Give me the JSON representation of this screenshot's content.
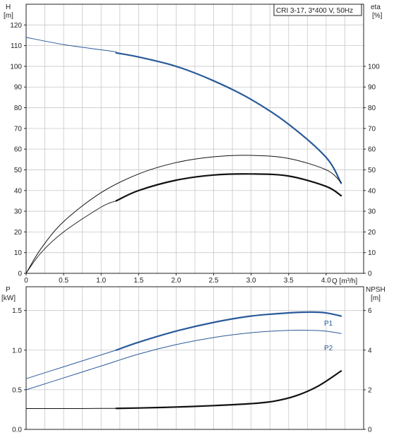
{
  "title": "CRI 3-17, 3*400 V, 50Hz",
  "colors": {
    "blue": "#2a5a9a",
    "black": "#111111",
    "grid": "#c8c8c8",
    "axis": "#222222"
  },
  "chart_data": [
    {
      "type": "line",
      "title": "CRI 3-17, 3*400 V, 50Hz",
      "xlabel": "Q [m³/h]",
      "ylabel_left": "H\n[m]",
      "ylabel_right": "eta\n[%]",
      "xlim": [
        0,
        4.5
      ],
      "ylim_left": [
        0,
        130
      ],
      "ylim_right": [
        0,
        130
      ],
      "x_ticks": [
        "0",
        "0.5",
        "1.0",
        "1.5",
        "2.0",
        "2.5",
        "3.0",
        "3.5",
        "4.0"
      ],
      "y_ticks_left": [
        "0",
        "10",
        "20",
        "30",
        "40",
        "50",
        "60",
        "70",
        "80",
        "90",
        "100",
        "110",
        "120"
      ],
      "y_ticks_right": [
        "0",
        "10",
        "20",
        "30",
        "40",
        "50",
        "60",
        "70",
        "80",
        "90",
        "100"
      ],
      "grid": true,
      "series": [
        {
          "key": "H_thin",
          "axis": "left",
          "color": "#2a5a9a",
          "width": 1,
          "x": [
            0,
            0.5,
            1.0,
            1.2
          ],
          "y": [
            114,
            110.5,
            108,
            107
          ]
        },
        {
          "key": "H_thick",
          "axis": "left",
          "color": "#2a5a9a",
          "width": 2.2,
          "x": [
            1.2,
            1.5,
            2.0,
            2.5,
            3.0,
            3.5,
            4.0,
            4.2
          ],
          "y": [
            106.5,
            104.5,
            100,
            93,
            84,
            72,
            56,
            43.5
          ]
        },
        {
          "key": "eta_thin",
          "axis": "right",
          "color": "#111111",
          "width": 1,
          "x": [
            0,
            0.2,
            0.5,
            1.0,
            1.5,
            2.0,
            2.5,
            3.0,
            3.5,
            4.0,
            4.2
          ],
          "y": [
            0,
            12,
            25,
            39,
            48,
            53.5,
            56.3,
            57,
            55.5,
            50,
            44
          ]
        },
        {
          "key": "eta_thick",
          "axis": "right",
          "color": "#111111",
          "width": 2.2,
          "x": [
            1.2,
            1.5,
            2.0,
            2.5,
            3.0,
            3.5,
            4.0,
            4.2
          ],
          "y": [
            35,
            40,
            45,
            47.5,
            48,
            47,
            42,
            37.5
          ]
        },
        {
          "key": "eta_thin2",
          "axis": "right",
          "color": "#111111",
          "width": 0.8,
          "x": [
            0,
            0.2,
            0.5,
            1.0,
            1.2
          ],
          "y": [
            0,
            10,
            20,
            32,
            35
          ]
        }
      ]
    },
    {
      "type": "line",
      "xlabel": "",
      "ylabel_left": "P\n[kW]",
      "ylabel_right": "NPSH\n[m]",
      "xlim": [
        0,
        4.5
      ],
      "ylim_left": [
        0,
        1.8
      ],
      "ylim_right": [
        0,
        7.2
      ],
      "y_ticks_left": [
        "0.0",
        "0.5",
        "1.0",
        "1.5"
      ],
      "y_ticks_right": [
        "0",
        "2",
        "4",
        "6"
      ],
      "grid": true,
      "series": [
        {
          "key": "P1_thin",
          "axis": "left",
          "name": "P1",
          "color": "#2a5a9a",
          "width": 1,
          "x": [
            0,
            0.5,
            1.0,
            1.2
          ],
          "y": [
            0.64,
            0.79,
            0.94,
            1.0
          ]
        },
        {
          "key": "P1_thick",
          "axis": "left",
          "name": "P1",
          "color": "#2a5a9a",
          "width": 2.2,
          "x": [
            1.2,
            1.5,
            2.0,
            2.5,
            3.0,
            3.5,
            3.8,
            4.0,
            4.2
          ],
          "y": [
            1.0,
            1.1,
            1.24,
            1.35,
            1.43,
            1.47,
            1.48,
            1.47,
            1.43
          ]
        },
        {
          "key": "P2_thin",
          "axis": "left",
          "name": "P2",
          "color": "#2a5a9a",
          "width": 1,
          "x": [
            0,
            0.5,
            1.0,
            1.5,
            2.0,
            2.5,
            3.0,
            3.5,
            3.8,
            4.0,
            4.2
          ],
          "y": [
            0.5,
            0.65,
            0.8,
            0.95,
            1.07,
            1.16,
            1.22,
            1.25,
            1.25,
            1.24,
            1.21
          ]
        },
        {
          "key": "NPSH_thin",
          "axis": "right",
          "color": "#111111",
          "width": 1,
          "x": [
            0,
            0.5,
            1.0,
            1.2
          ],
          "y": [
            1.05,
            1.05,
            1.06,
            1.06
          ]
        },
        {
          "key": "NPSH_thick",
          "axis": "right",
          "color": "#111111",
          "width": 2.2,
          "x": [
            1.2,
            1.5,
            2.0,
            2.5,
            3.0,
            3.3,
            3.6,
            3.9,
            4.2
          ],
          "y": [
            1.06,
            1.08,
            1.13,
            1.2,
            1.3,
            1.42,
            1.7,
            2.2,
            2.95
          ]
        }
      ],
      "labels": [
        "P1",
        "P2"
      ]
    }
  ]
}
